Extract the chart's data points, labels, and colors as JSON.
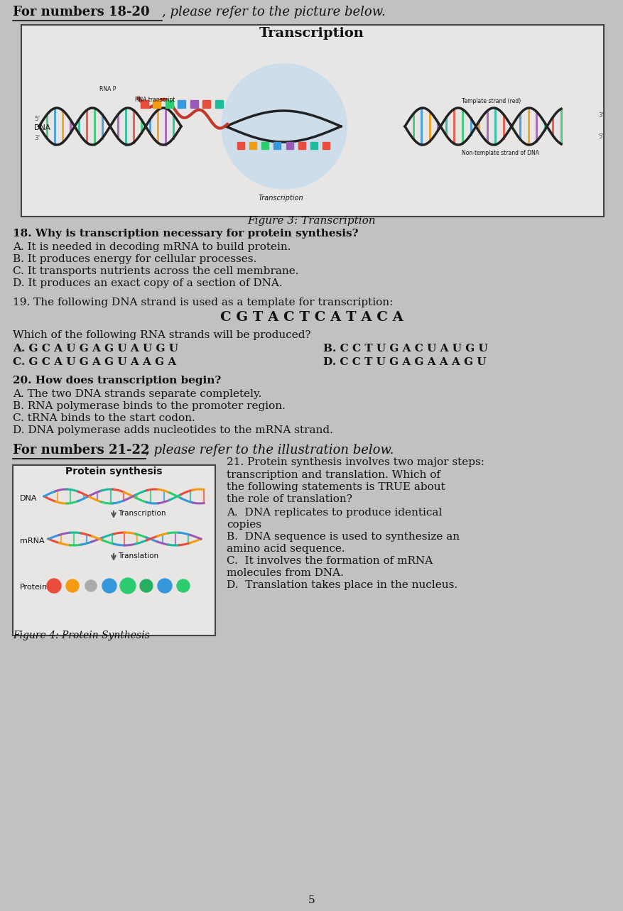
{
  "bg_color": "#c2c0c0",
  "header_text": "For numbers 18-20",
  "header_suffix": ", please refer to the picture below.",
  "fig3_title": "Figure 3: Transcription",
  "fig3_box_title": "Transcription",
  "q18_text": "18. Why is transcription necessary for protein synthesis?",
  "q18_A": "A. It is needed in decoding mRNA to build protein.",
  "q18_B": "B. It produces energy for cellular processes.",
  "q18_C": "C. It transports nutrients across the cell membrane.",
  "q18_D": "D. It produces an exact copy of a section of DNA.",
  "q19_text": "19. The following DNA strand is used as a template for transcription:",
  "q19_dna": "C G T A C T C A T A C A",
  "q19_which": "Which of the following RNA strands will be produced?",
  "q19_A": "A. G C A U G A G U A U G U",
  "q19_B": "B. C C T U G A C U A U G U",
  "q19_C": "C. G C A U G A G U A A G A",
  "q19_D": "D. C C T U G A G A A A G U",
  "q20_text": "20. How does transcription begin?",
  "q20_A": "A. The two DNA strands separate completely.",
  "q20_B": "B. RNA polymerase binds to the promoter region.",
  "q20_C": "C. tRNA binds to the start codon.",
  "q20_D": "D. DNA polymerase adds nucleotides to the mRNA strand.",
  "header2_text": "For numbers 21-22",
  "header2_suffix": ", please refer to the illustration below.",
  "fig4_box_title": "Protein synthesis",
  "fig4_label_dna": "DNA",
  "fig4_label_mrna": "mRNA",
  "fig4_label_transcription": "Transcription",
  "fig4_label_translation": "Translation",
  "fig4_label_protein": "Protein",
  "fig4_caption": "Figure 4: Protein Synthesis",
  "q21_text": "21. Protein synthesis involves two major steps:",
  "q21_text2": "transcription and translation. Which of",
  "q21_text3": "the following statements is TRUE about",
  "q21_text4": "the role of translation?",
  "q21_A": "A.  DNA replicates to produce identical",
  "q21_A2": "copies",
  "q21_B": "B.  DNA sequence is used to synthesize an",
  "q21_B2": "amino acid sequence.",
  "q21_C": "C.  It involves the formation of mRNA",
  "q21_C2": "molecules from DNA.",
  "q21_D": "D.  Translation takes place in the nucleus.",
  "page_num": "5"
}
